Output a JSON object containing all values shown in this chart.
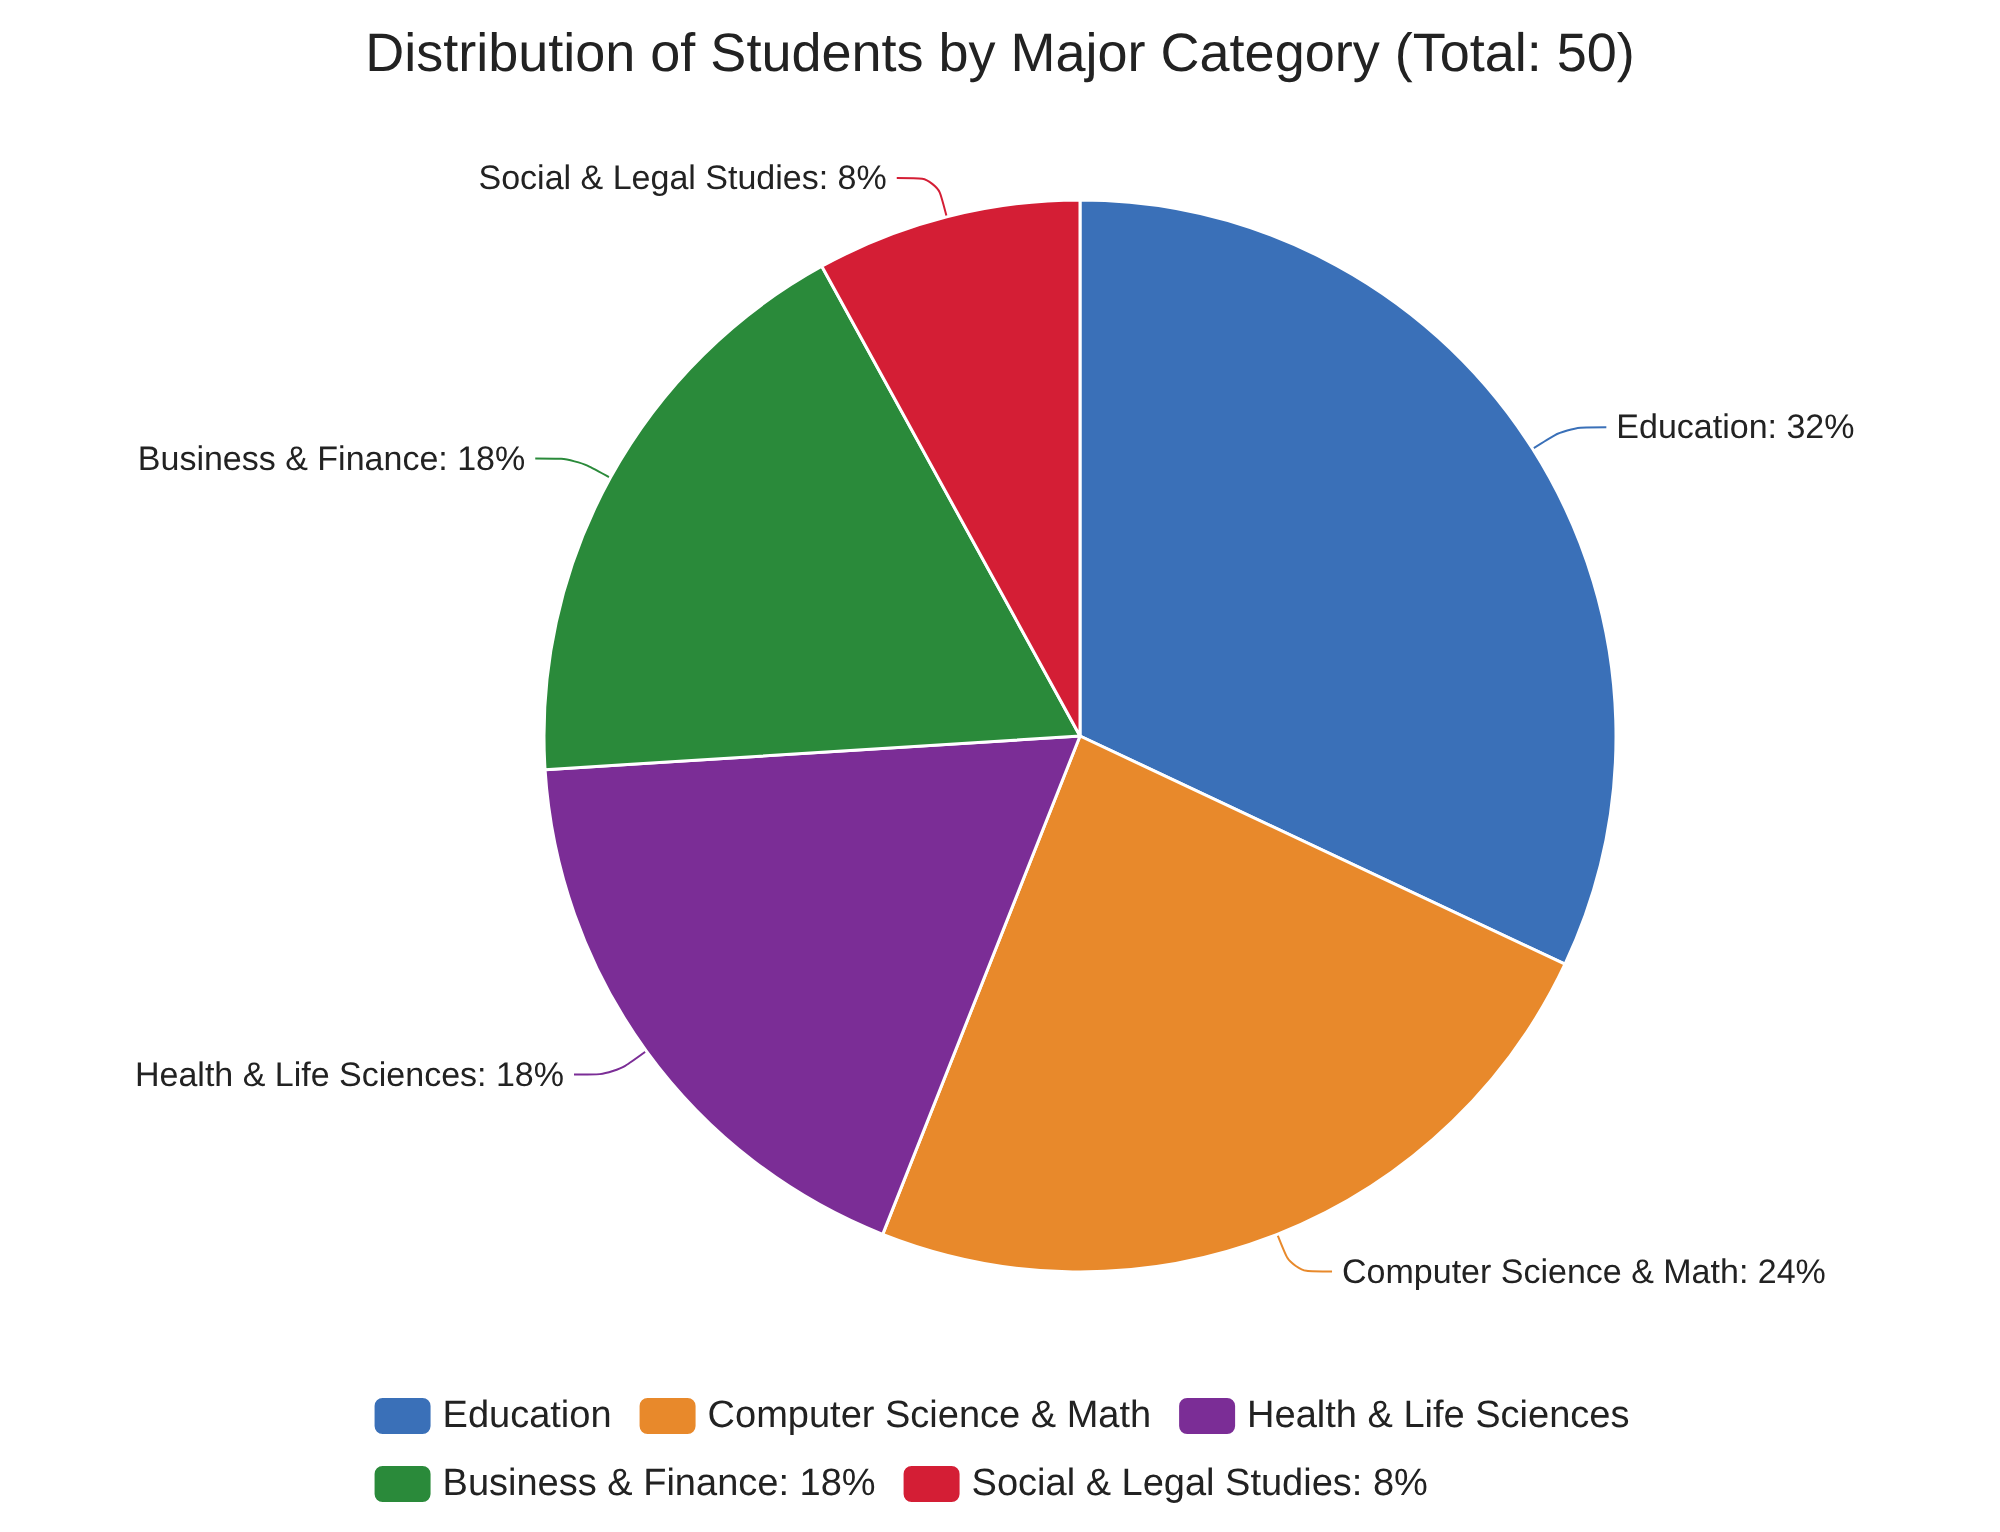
{
  "chart_data": {
    "type": "pie",
    "title": "Distribution of Students by Major Category (Total: 50)",
    "categories": [
      "Education",
      "Computer Science & Math",
      "Health & Life Sciences",
      "Business & Finance: 18%",
      "Social & Legal Studies: 8%"
    ],
    "values": [
      32,
      24,
      18,
      18,
      8
    ],
    "value_labels": [
      "Education: 32%",
      "Computer Science & Math: 24%",
      "Health & Life Sciences: 18%",
      "Business & Finance: 18%",
      "Social & Legal Studies: 8%"
    ],
    "colors": [
      "#3a70b8",
      "#e8892b",
      "#7b2d96",
      "#2a8a3a",
      "#d41e35"
    ],
    "legend": "bottom"
  }
}
